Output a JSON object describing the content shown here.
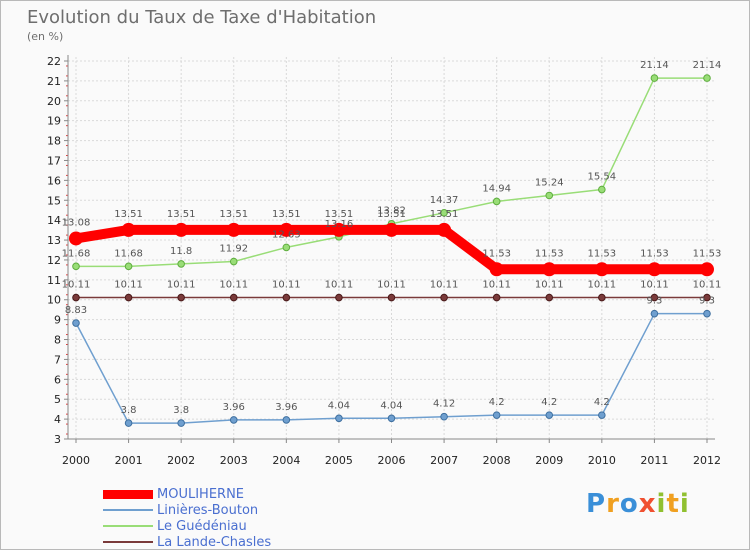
{
  "title": "Evolution du Taux de Taxe d'Habitation",
  "subtitle": "(en %)",
  "logo_text": "Proxiti",
  "chart_data": {
    "type": "line",
    "title": "Evolution du Taux de Taxe d'Habitation",
    "ylabel": "(en %)",
    "x": [
      "2000",
      "2001",
      "2002",
      "2003",
      "2004",
      "2005",
      "2006",
      "2007",
      "2008",
      "2009",
      "2010",
      "2011",
      "2012"
    ],
    "y_ticks": [
      3,
      4,
      5,
      6,
      7,
      8,
      9,
      10,
      11,
      12,
      13,
      14,
      15,
      16,
      17,
      18,
      19,
      20,
      21,
      22
    ],
    "ylim": [
      3,
      22
    ],
    "grid": true,
    "legend_position": "bottom-left",
    "series": [
      {
        "name": "MOULIHERNE",
        "color": "#ff0000",
        "values": [
          13.08,
          13.51,
          13.51,
          13.51,
          13.51,
          13.51,
          13.51,
          13.51,
          11.53,
          11.53,
          11.53,
          11.53,
          11.53
        ],
        "labels": [
          "13.08",
          "13.51",
          "13.51",
          "13.51",
          "13.51",
          "13.51",
          "13.51",
          "13.51",
          "11.53",
          "11.53",
          "11.53",
          "11.53",
          "11.53"
        ]
      },
      {
        "name": "Linières-Bouton",
        "color": "#6f9fcf",
        "values": [
          8.83,
          3.8,
          3.8,
          3.96,
          3.96,
          4.04,
          4.04,
          4.12,
          4.2,
          4.2,
          4.2,
          9.3,
          9.3
        ],
        "labels": [
          "8.83",
          "3.8",
          "3.8",
          "3.96",
          "3.96",
          "4.04",
          "4.04",
          "4.12",
          "4.2",
          "4.2",
          "4.2",
          "9.3",
          "9.3"
        ]
      },
      {
        "name": "Le Guédéniau",
        "color": "#99dd77",
        "values": [
          11.68,
          11.68,
          11.8,
          11.92,
          12.63,
          13.16,
          13.82,
          14.37,
          14.94,
          15.24,
          15.54,
          21.14,
          21.14
        ],
        "labels": [
          "11.68",
          "11.68",
          "11.8",
          "11.92",
          "12.63",
          "13.16",
          "13.82",
          "14.37",
          "14.94",
          "15.24",
          "15.54",
          "21.14",
          "21.14"
        ]
      },
      {
        "name": "La Lande-Chasles",
        "color": "#7a3a3a",
        "values": [
          10.11,
          10.11,
          10.11,
          10.11,
          10.11,
          10.11,
          10.11,
          10.11,
          10.11,
          10.11,
          10.11,
          10.11,
          10.11
        ],
        "labels": [
          "10.11",
          "10.11",
          "10.11",
          "10.11",
          "10.11",
          "10.11",
          "10.11",
          "10.11",
          "10.11",
          "10.11",
          "10.11",
          "10.11",
          "10.11"
        ]
      }
    ]
  }
}
